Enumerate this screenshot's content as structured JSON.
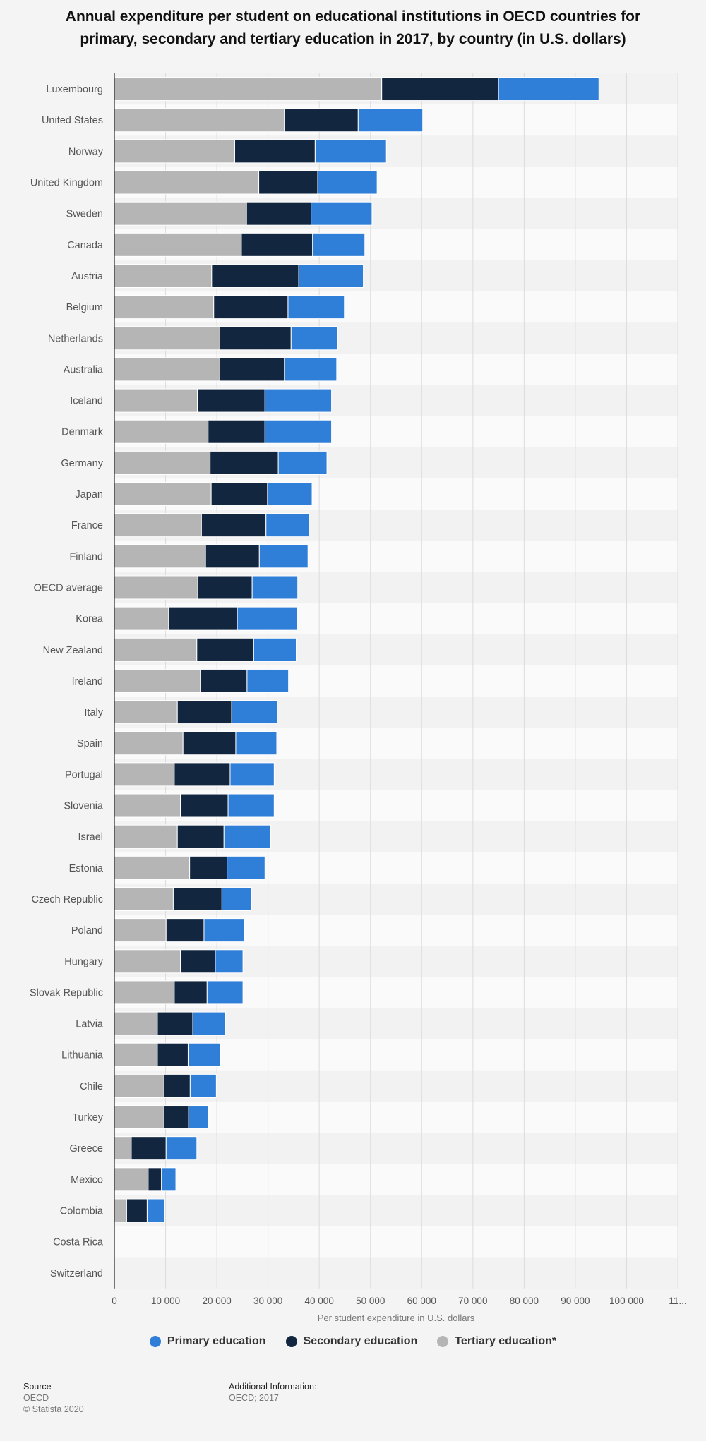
{
  "chart_data": {
    "type": "bar",
    "orientation": "horizontal",
    "stacked": true,
    "title": "Annual expenditure per student on educational institutions in OECD countries for primary, secondary and tertiary education in 2017, by country (in U.S. dollars)",
    "xlabel": "Per student expenditure in U.S. dollars",
    "xlim": [
      0,
      110000
    ],
    "x_ticks": [
      "0",
      "10 000",
      "20 000",
      "30 000",
      "40 000",
      "50 000",
      "60 000",
      "70 000",
      "80 000",
      "90 000",
      "100 000",
      "11..."
    ],
    "grid": true,
    "legend_position": "bottom",
    "categories": [
      "Luxembourg",
      "United States",
      "Norway",
      "United Kingdom",
      "Sweden",
      "Canada",
      "Austria",
      "Belgium",
      "Netherlands",
      "Australia",
      "Iceland",
      "Denmark",
      "Germany",
      "Japan",
      "France",
      "Finland",
      "OECD average",
      "Korea",
      "New Zealand",
      "Ireland",
      "Italy",
      "Spain",
      "Portugal",
      "Slovenia",
      "Israel",
      "Estonia",
      "Czech Republic",
      "Poland",
      "Hungary",
      "Slovak Republic",
      "Latvia",
      "Lithuania",
      "Chile",
      "Turkey",
      "Greece",
      "Mexico",
      "Colombia",
      "Costa Rica",
      "Switzerland"
    ],
    "stack_order": [
      "Tertiary education*",
      "Secondary education",
      "Primary education"
    ],
    "series": [
      {
        "name": "Primary education",
        "color": "#2f7ed8",
        "values": [
          19600,
          12600,
          13900,
          11600,
          11900,
          10200,
          12600,
          11000,
          9100,
          10200,
          13000,
          13000,
          9500,
          8700,
          8400,
          9500,
          8900,
          11700,
          8300,
          8100,
          8900,
          8000,
          8600,
          9000,
          9100,
          7400,
          5800,
          7900,
          5400,
          7000,
          6400,
          6300,
          5100,
          3800,
          6000,
          2800,
          3400,
          0,
          0
        ]
      },
      {
        "name": "Secondary education",
        "color": "#12263f",
        "values": [
          22800,
          14400,
          15700,
          11500,
          12600,
          13900,
          17000,
          14500,
          13900,
          12600,
          13200,
          11100,
          13300,
          11000,
          12600,
          10500,
          10600,
          13400,
          11100,
          9100,
          10600,
          10300,
          10900,
          9300,
          9100,
          7300,
          9500,
          7400,
          6800,
          6400,
          6900,
          6000,
          5100,
          4800,
          6800,
          2600,
          4000,
          0,
          0
        ]
      },
      {
        "name": "Tertiary education*",
        "color": "#b5b5b5",
        "values": [
          52200,
          33200,
          23500,
          28200,
          25800,
          24800,
          19000,
          19400,
          20600,
          20600,
          16200,
          18300,
          18700,
          18900,
          17000,
          17800,
          16300,
          10600,
          16100,
          16800,
          12300,
          13400,
          11700,
          12900,
          12300,
          14700,
          11500,
          10100,
          12900,
          11700,
          8400,
          8400,
          9700,
          9700,
          3300,
          6600,
          2400,
          0,
          0
        ]
      }
    ]
  },
  "legend": [
    {
      "label": "Primary education",
      "color": "#2f7ed8"
    },
    {
      "label": "Secondary education",
      "color": "#12263f"
    },
    {
      "label": "Tertiary education*",
      "color": "#b5b5b5"
    }
  ],
  "footer": {
    "source_heading": "Source",
    "source_name": "OECD",
    "copyright": "© Statista 2020",
    "info_heading": "Additional Information:",
    "info_text": "OECD; 2017"
  }
}
